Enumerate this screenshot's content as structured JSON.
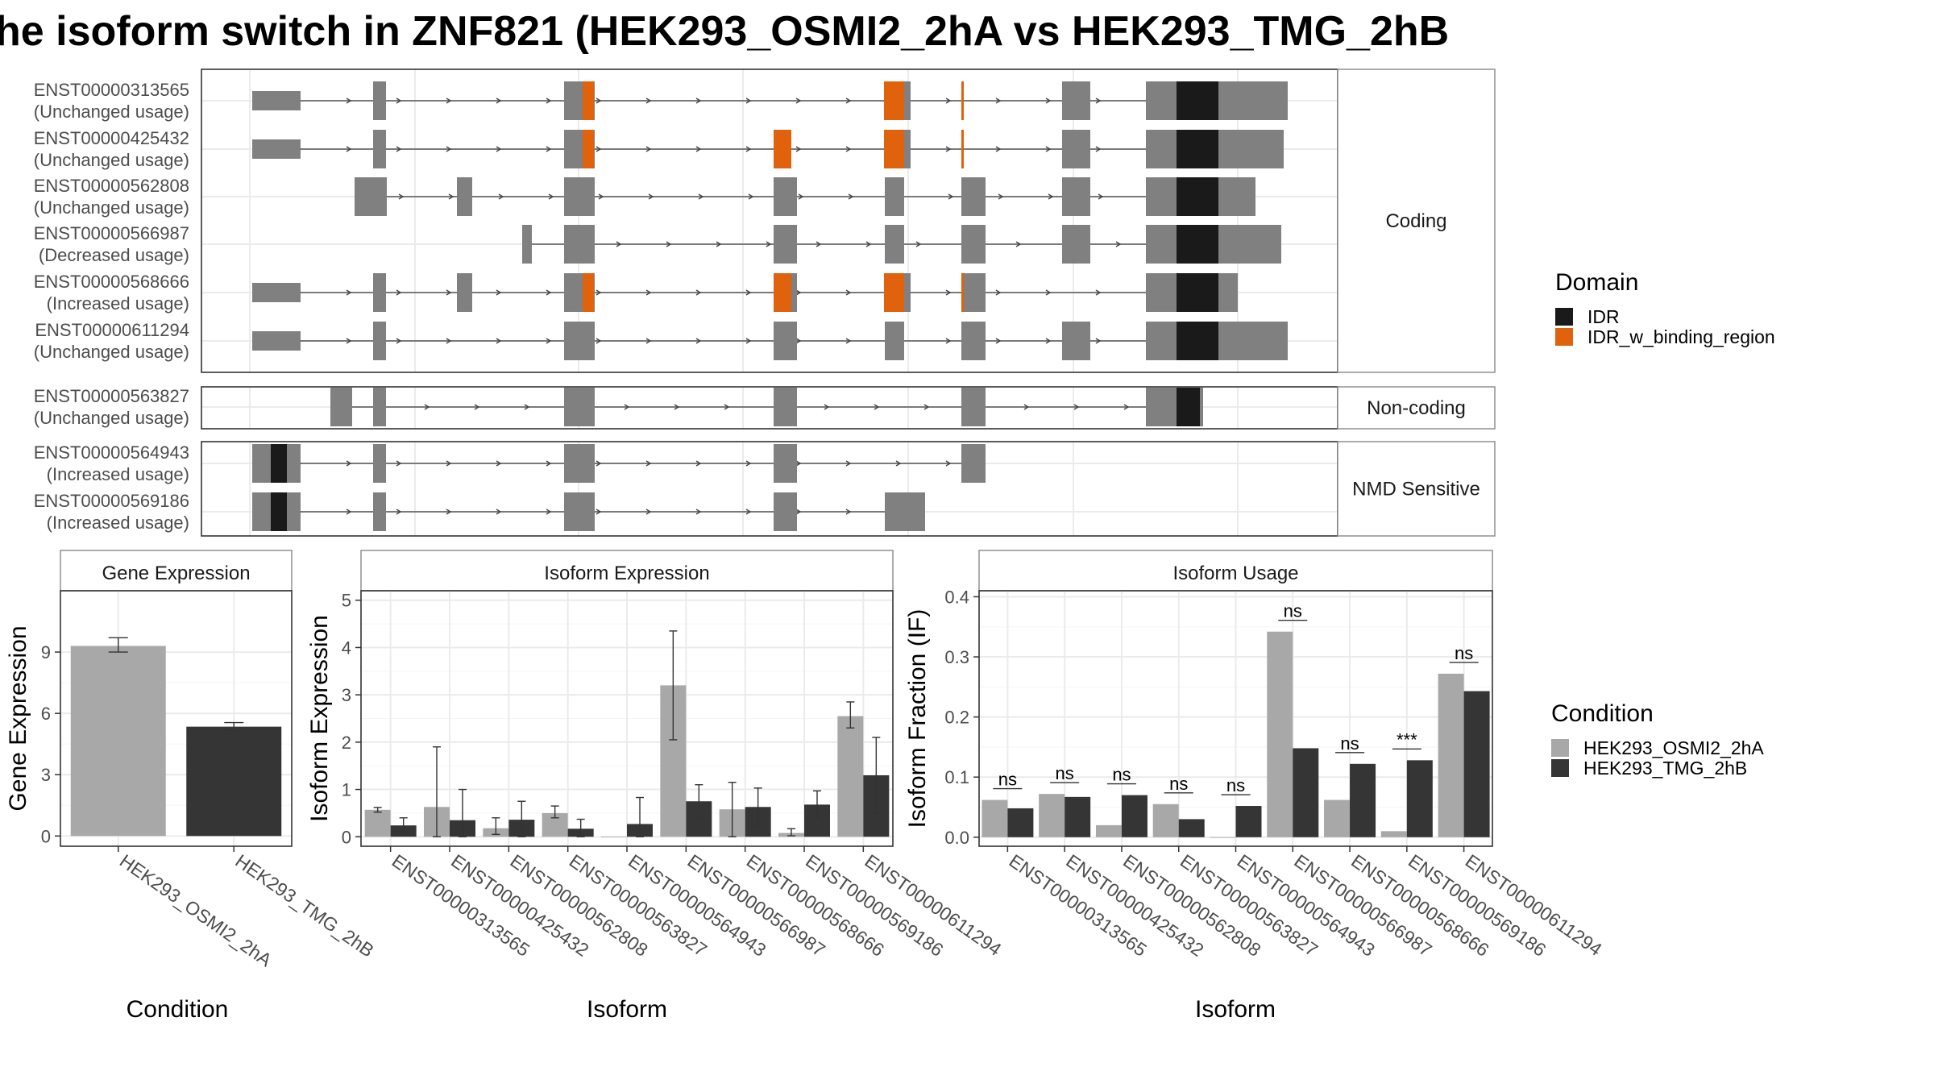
{
  "title": "he isoform switch in ZNF821 (HEK293_OSMI2_2hA vs HEK293_TMG_2hB",
  "colors": {
    "exon": "#808080",
    "idr": "#1a1a1a",
    "idr_binding": "#e0620d",
    "cond_a": "#a8a8a8",
    "cond_b": "#353535",
    "grid": "#ebebeb",
    "panel_border": "#333333",
    "strip_border": "#888888"
  },
  "structure": {
    "groups": [
      {
        "label": "Coding",
        "transcripts": [
          {
            "id": "ENST00000313565",
            "usage": "(Unchanged usage)"
          },
          {
            "id": "ENST00000425432",
            "usage": "(Unchanged usage)"
          },
          {
            "id": "ENST00000562808",
            "usage": "(Unchanged usage)"
          },
          {
            "id": "ENST00000566987",
            "usage": "(Decreased usage)"
          },
          {
            "id": "ENST00000568666",
            "usage": "(Increased usage)"
          },
          {
            "id": "ENST00000611294",
            "usage": "(Unchanged usage)"
          }
        ]
      },
      {
        "label": "Non-coding",
        "transcripts": [
          {
            "id": "ENST00000563827",
            "usage": "(Unchanged usage)"
          }
        ]
      },
      {
        "label": "NMD Sensitive",
        "transcripts": [
          {
            "id": "ENST00000564943",
            "usage": "(Increased usage)"
          },
          {
            "id": "ENST00000569186",
            "usage": "(Increased usage)"
          }
        ]
      }
    ]
  },
  "legend_domain": {
    "title": "Domain",
    "items": [
      {
        "label": "IDR",
        "color": "#1a1a1a"
      },
      {
        "label": "IDR_w_binding_region",
        "color": "#e0620d"
      }
    ]
  },
  "legend_condition": {
    "title": "Condition",
    "items": [
      {
        "label": "HEK293_OSMI2_2hA",
        "color": "#a8a8a8"
      },
      {
        "label": "HEK293_TMG_2hB",
        "color": "#353535"
      }
    ]
  },
  "chart_data": [
    {
      "type": "bar",
      "title": "Gene Expression",
      "xlabel": "Condition",
      "ylabel": "Gene Expression",
      "categories": [
        "HEK293_OSMI2_2hA",
        "HEK293_TMG_2hB"
      ],
      "values": [
        9.3,
        5.35
      ],
      "error": [
        [
          9.0,
          9.7
        ],
        [
          5.2,
          5.55
        ]
      ],
      "yticks": [
        0,
        3,
        6,
        9
      ],
      "ylim": [
        -0.5,
        12
      ]
    },
    {
      "type": "bar",
      "title": "Isoform Expression",
      "xlabel": "Isoform",
      "ylabel": "Isoform Expression",
      "categories": [
        "ENST00000313565",
        "ENST00000425432",
        "ENST00000562808",
        "ENST00000563827",
        "ENST00000564943",
        "ENST00000566987",
        "ENST00000568666",
        "ENST00000569186",
        "ENST00000611294"
      ],
      "series": [
        {
          "name": "HEK293_OSMI2_2hA",
          "values": [
            0.57,
            0.63,
            0.18,
            0.5,
            0.0,
            3.2,
            0.58,
            0.08,
            2.55
          ]
        },
        {
          "name": "HEK293_TMG_2hB",
          "values": [
            0.24,
            0.35,
            0.36,
            0.17,
            0.27,
            0.75,
            0.63,
            0.68,
            1.3
          ]
        }
      ],
      "error": [
        [
          [
            0.52,
            0.62
          ],
          [
            0.0,
            1.9
          ],
          [
            0.05,
            0.4
          ],
          [
            0.4,
            0.65
          ],
          [
            0.0,
            0.0
          ],
          [
            2.05,
            4.35
          ],
          [
            0.0,
            1.15
          ],
          [
            0.02,
            0.17
          ],
          [
            2.3,
            2.85
          ]
        ],
        [
          [
            0.1,
            0.4
          ],
          [
            0.0,
            1.0
          ],
          [
            0.0,
            0.75
          ],
          [
            0.0,
            0.37
          ],
          [
            0.0,
            0.83
          ],
          [
            0.4,
            1.1
          ],
          [
            0.23,
            1.03
          ],
          [
            0.4,
            0.97
          ],
          [
            0.5,
            2.1
          ]
        ]
      ],
      "yticks": [
        0,
        1,
        2,
        3,
        4,
        5
      ],
      "ylim": [
        -0.2,
        5.2
      ]
    },
    {
      "type": "bar",
      "title": "Isoform Usage",
      "xlabel": "Isoform",
      "ylabel": "Isoform Fraction (IF)",
      "categories": [
        "ENST00000313565",
        "ENST00000425432",
        "ENST00000562808",
        "ENST00000563827",
        "ENST00000564943",
        "ENST00000566987",
        "ENST00000568666",
        "ENST00000569186",
        "ENST00000611294"
      ],
      "series": [
        {
          "name": "HEK293_OSMI2_2hA",
          "values": [
            0.062,
            0.072,
            0.02,
            0.055,
            0.0,
            0.342,
            0.062,
            0.01,
            0.272
          ]
        },
        {
          "name": "HEK293_TMG_2hB",
          "values": [
            0.048,
            0.067,
            0.07,
            0.03,
            0.052,
            0.148,
            0.122,
            0.128,
            0.243
          ]
        }
      ],
      "significance": [
        "ns",
        "ns",
        "ns",
        "ns",
        "ns",
        "ns",
        "ns",
        "***",
        "ns"
      ],
      "yticks": [
        "0.0",
        "0.1",
        "0.2",
        "0.3",
        "0.4"
      ],
      "ylim": [
        -0.015,
        0.41
      ]
    }
  ]
}
